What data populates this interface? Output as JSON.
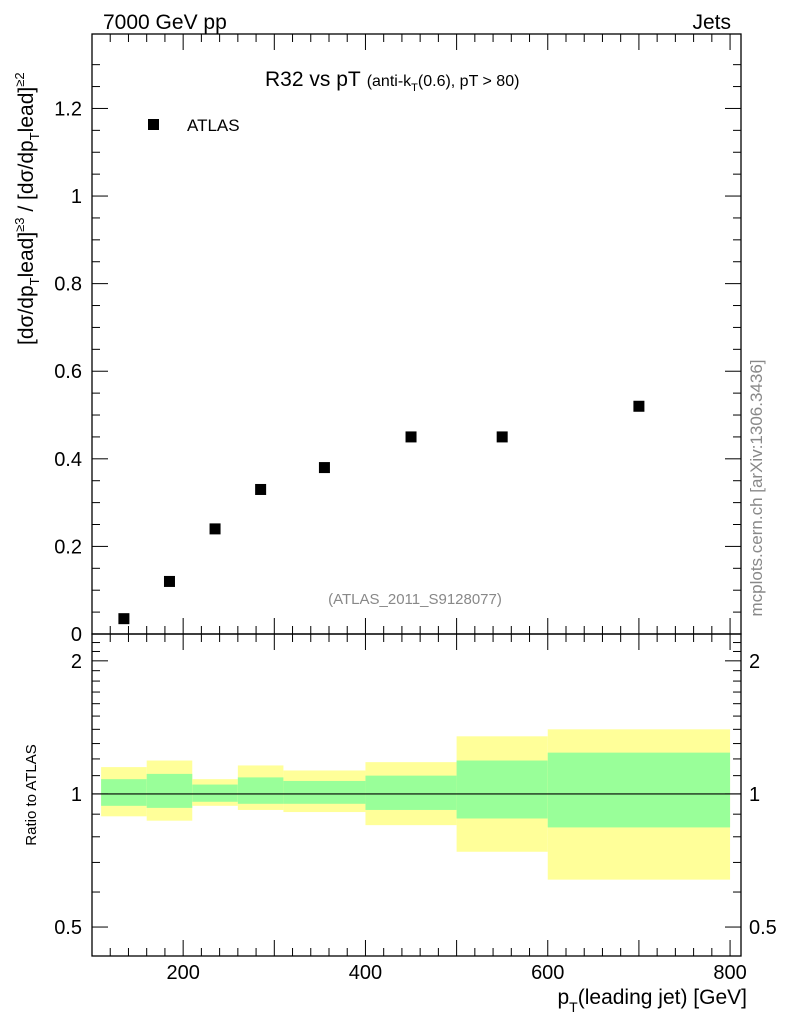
{
  "header": {
    "left": "7000 GeV pp",
    "right": "Jets"
  },
  "side_label": "mcplots.cern.ch [arXiv:1306.3436]",
  "watermark": "(ATLAS_2011_S9128077)",
  "colors": {
    "marker": "#000000",
    "band_outer": "#ffff99",
    "band_inner": "#99ff99",
    "watermark": "#888888"
  },
  "chart_data": [
    {
      "type": "scatter",
      "title_main": "R32 vs pT",
      "title_sub": "(anti-k",
      "title_sub_subscript": "T",
      "title_sub_tail": "(0.6), pT > 80)",
      "ylabel": "[dσ/dp",
      "ylabel_full": "[dσ/dp_T^lead]^≥3 / [dσ/dp_T^lead]^≥2",
      "legend": [
        "ATLAS"
      ],
      "xlim": [
        100,
        812
      ],
      "ylim": [
        0,
        1.37
      ],
      "yticks": [
        "0",
        "0.2",
        "0.4",
        "0.6",
        "0.8",
        "1",
        "1.2"
      ],
      "series": [
        {
          "name": "ATLAS",
          "x": [
            135,
            185,
            235,
            285,
            355,
            450,
            550,
            700
          ],
          "y": [
            0.035,
            0.12,
            0.24,
            0.33,
            0.38,
            0.45,
            0.45,
            0.52
          ]
        }
      ]
    },
    {
      "type": "area",
      "ylabel": "Ratio to ATLAS",
      "xlabel": "p",
      "xlabel_subscript": "T",
      "xlabel_tail": "(leading jet) [GeV]",
      "xticks": [
        "200",
        "400",
        "600",
        "800"
      ],
      "yticks": [
        "0.5",
        "1",
        "2"
      ],
      "ylim": [
        0.43,
        2.3
      ],
      "reference_line": 1,
      "bins": [
        {
          "lo": 110,
          "hi": 160,
          "outer": [
            0.89,
            1.15
          ],
          "inner": [
            0.94,
            1.08
          ]
        },
        {
          "lo": 160,
          "hi": 210,
          "outer": [
            0.87,
            1.19
          ],
          "inner": [
            0.93,
            1.11
          ]
        },
        {
          "lo": 210,
          "hi": 260,
          "outer": [
            0.94,
            1.08
          ],
          "inner": [
            0.96,
            1.05
          ]
        },
        {
          "lo": 260,
          "hi": 310,
          "outer": [
            0.92,
            1.16
          ],
          "inner": [
            0.95,
            1.09
          ]
        },
        {
          "lo": 310,
          "hi": 400,
          "outer": [
            0.91,
            1.13
          ],
          "inner": [
            0.95,
            1.07
          ]
        },
        {
          "lo": 400,
          "hi": 500,
          "outer": [
            0.85,
            1.18
          ],
          "inner": [
            0.92,
            1.1
          ]
        },
        {
          "lo": 500,
          "hi": 600,
          "outer": [
            0.74,
            1.35
          ],
          "inner": [
            0.88,
            1.19
          ]
        },
        {
          "lo": 600,
          "hi": 800,
          "outer": [
            0.64,
            1.4
          ],
          "inner": [
            0.84,
            1.24
          ]
        }
      ]
    }
  ]
}
